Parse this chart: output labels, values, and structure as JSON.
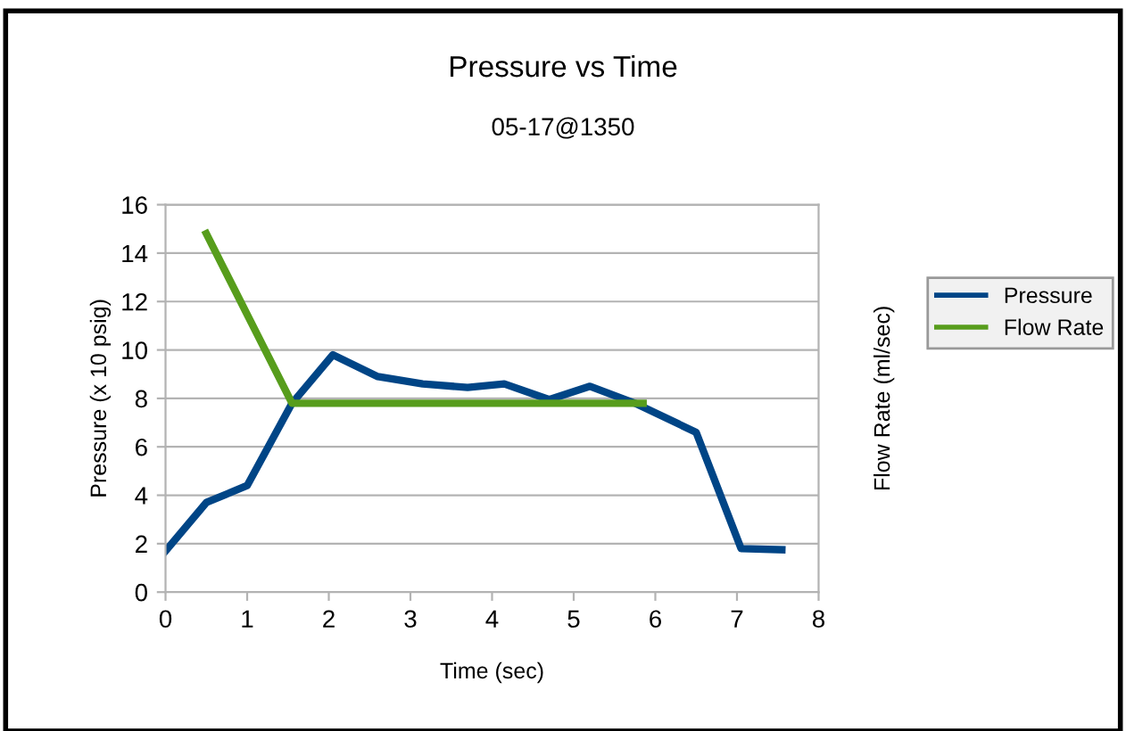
{
  "chart_data": {
    "type": "line",
    "title": "Pressure vs Time",
    "subtitle": "05-17@1350",
    "xlabel": "Time (sec)",
    "ylabel": "Pressure (x 10 psig)",
    "y2label": "Flow Rate (ml/sec)",
    "series": [
      {
        "name": "Pressure",
        "color": "#004586",
        "x": [
          0,
          0.5,
          1.0,
          1.55,
          2.05,
          2.6,
          3.15,
          3.7,
          4.15,
          4.7,
          5.2,
          5.75,
          6.5,
          7.05,
          7.55
        ],
        "values": [
          1.7,
          3.7,
          4.4,
          7.8,
          9.8,
          8.9,
          8.6,
          8.45,
          8.6,
          7.95,
          8.5,
          7.8,
          6.6,
          1.8,
          1.75
        ]
      },
      {
        "name": "Flow Rate",
        "color": "#579d1c",
        "x": [
          0.5,
          1.55,
          5.85
        ],
        "values": [
          14.8,
          7.8,
          7.8
        ]
      }
    ],
    "xlim": [
      0,
      8
    ],
    "xticks": [
      0,
      1,
      2,
      3,
      4,
      5,
      6,
      7,
      8
    ],
    "ylim": [
      0,
      16
    ],
    "yticks": [
      0,
      2,
      4,
      6,
      8,
      10,
      12,
      14,
      16
    ],
    "grid": "y",
    "legend": "right"
  }
}
